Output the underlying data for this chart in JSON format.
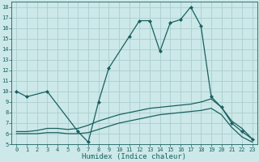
{
  "bg_color": "#cce8e8",
  "grid_color": "#aacece",
  "line_color": "#1a6060",
  "xlabel": "Humidex (Indice chaleur)",
  "xlim": [
    -0.5,
    23.5
  ],
  "ylim": [
    5,
    18.5
  ],
  "xticks": [
    0,
    1,
    2,
    3,
    4,
    5,
    6,
    7,
    8,
    9,
    10,
    11,
    12,
    13,
    14,
    15,
    16,
    17,
    18,
    19,
    20,
    21,
    22,
    23
  ],
  "yticks": [
    5,
    6,
    7,
    8,
    9,
    10,
    11,
    12,
    13,
    14,
    15,
    16,
    17,
    18
  ],
  "series1_x": [
    0,
    1,
    3,
    6,
    7,
    8,
    9,
    11,
    12,
    13,
    14,
    15,
    16,
    17,
    18,
    19,
    20,
    21,
    22,
    23
  ],
  "series1_y": [
    10.0,
    9.5,
    10.0,
    6.2,
    5.2,
    9.0,
    12.2,
    15.2,
    16.7,
    16.7,
    13.8,
    16.5,
    16.8,
    18.0,
    16.2,
    9.5,
    8.5,
    7.0,
    6.2,
    5.5
  ],
  "series2_x": [
    0,
    1,
    2,
    3,
    4,
    5,
    6,
    7,
    8,
    9,
    10,
    11,
    12,
    13,
    14,
    15,
    16,
    17,
    18,
    19,
    20,
    21,
    22,
    23
  ],
  "series2_y": [
    6.2,
    6.2,
    6.3,
    6.5,
    6.5,
    6.4,
    6.5,
    6.8,
    7.2,
    7.5,
    7.8,
    8.0,
    8.2,
    8.4,
    8.5,
    8.6,
    8.7,
    8.8,
    9.0,
    9.3,
    8.5,
    7.2,
    6.5,
    5.5
  ],
  "series3_x": [
    0,
    1,
    2,
    3,
    4,
    5,
    6,
    7,
    8,
    9,
    10,
    11,
    12,
    13,
    14,
    15,
    16,
    17,
    18,
    19,
    20,
    21,
    22,
    23
  ],
  "series3_y": [
    6.0,
    6.0,
    6.0,
    6.1,
    6.1,
    6.0,
    6.0,
    6.1,
    6.4,
    6.7,
    7.0,
    7.2,
    7.4,
    7.6,
    7.8,
    7.9,
    8.0,
    8.1,
    8.2,
    8.4,
    7.8,
    6.6,
    5.7,
    5.2
  ],
  "marker_x1": [
    0,
    1,
    3,
    6,
    7,
    8,
    9,
    11,
    12,
    13,
    14,
    15,
    16,
    17,
    18,
    19,
    20,
    21,
    22,
    23
  ],
  "marker_y1": [
    10.0,
    9.5,
    10.0,
    6.2,
    5.2,
    9.0,
    12.2,
    15.2,
    16.7,
    16.7,
    13.8,
    16.5,
    16.8,
    18.0,
    16.2,
    9.5,
    8.5,
    7.0,
    6.2,
    5.5
  ],
  "figsize": [
    3.2,
    2.0
  ],
  "dpi": 100,
  "tick_fontsize": 5.0,
  "xlabel_fontsize": 6.5,
  "linewidth": 0.9,
  "markersize": 2.5
}
